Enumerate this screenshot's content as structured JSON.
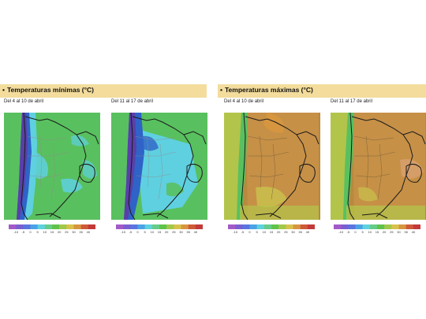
{
  "panels": [
    {
      "title": "Temperaturas mínimas (°C)",
      "bullet": "•",
      "periods": [
        "Del 4 al 10 de abril",
        "Del 11 al 17 de abril"
      ]
    },
    {
      "title": "Temperaturas máximas (°C)",
      "bullet": "•",
      "periods": [
        "Del 4 al 10 de abril",
        "Del 11 al 17 de abril"
      ]
    }
  ],
  "scale": {
    "ticks": [
      "-10",
      "-5",
      "0",
      "5",
      "10",
      "15",
      "20",
      "25",
      "30",
      "35",
      "40"
    ],
    "colors": [
      "#a35ac8",
      "#7a5fd0",
      "#5a75e0",
      "#4ba3e6",
      "#5ed2de",
      "#66cc88",
      "#5fc24a",
      "#a2c84a",
      "#d8c24c",
      "#d69640",
      "#cf5a3a",
      "#c23a3a"
    ]
  },
  "colors": {
    "header_band": "#f3dc9c",
    "ocean_min": "#59c05f",
    "ocean_max": "#b78a3e",
    "cold_blue": "#2f63c8",
    "cyan": "#5cd0df",
    "warm_brown": "#c69047",
    "yellow_green": "#b3c44a",
    "andes_purple": "#5a3fa8"
  }
}
